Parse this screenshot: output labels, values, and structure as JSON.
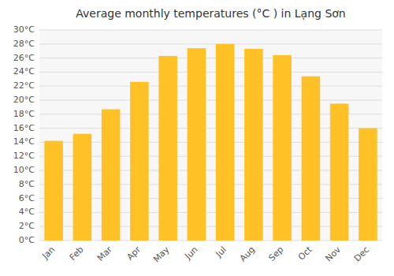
{
  "chart_data": {
    "type": "bar",
    "title": "Average monthly temperatures (°C ) in Lạng Sơn",
    "categories": [
      "Jan",
      "Feb",
      "Mar",
      "Apr",
      "May",
      "Jun",
      "Jul",
      "Aug",
      "Sep",
      "Oct",
      "Nov",
      "Dec"
    ],
    "values": [
      14.2,
      15.2,
      18.7,
      22.6,
      26.3,
      27.4,
      28.0,
      27.3,
      26.4,
      23.4,
      19.5,
      16.0
    ],
    "color": "#FFC125",
    "ylim": [
      0,
      30
    ],
    "yticks": [
      {
        "value": 0,
        "label": "0°C"
      },
      {
        "value": 2,
        "label": "2°C"
      },
      {
        "value": 4,
        "label": "4°C"
      },
      {
        "value": 6,
        "label": "6°C"
      },
      {
        "value": 8,
        "label": "8°C"
      },
      {
        "value": 10,
        "label": "10°C"
      },
      {
        "value": 12,
        "label": "12°C"
      },
      {
        "value": 14,
        "label": "14°C"
      },
      {
        "value": 16,
        "label": "16°C"
      },
      {
        "value": 18,
        "label": "18°C"
      },
      {
        "value": 20,
        "label": "20°C"
      },
      {
        "value": 22,
        "label": "22°C"
      },
      {
        "value": 24,
        "label": "24°C"
      },
      {
        "value": 26,
        "label": "26°C"
      },
      {
        "value": 28,
        "label": "28°C"
      },
      {
        "value": 30,
        "label": "30°C"
      }
    ],
    "grid": true
  }
}
